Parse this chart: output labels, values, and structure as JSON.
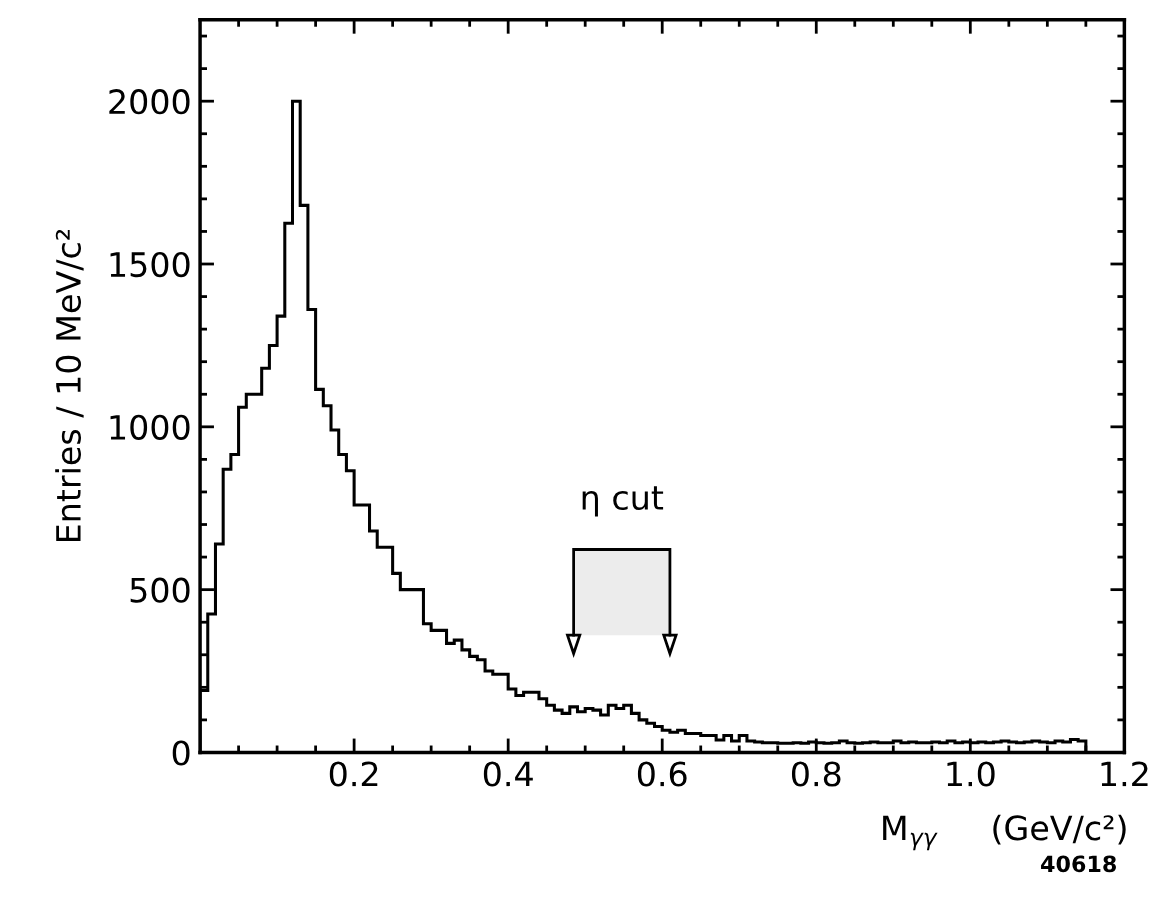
{
  "chart_data": {
    "type": "histogram",
    "xlabel": "M$_{γγ}$     (GeV/c²)",
    "ylabel": "Entries / 10 MeV/c²",
    "annotations": [
      "40618"
    ],
    "bins": [
      0,
      0.01,
      0.02,
      0.03,
      0.04,
      0.05,
      0.06,
      0.07,
      0.08,
      0.09,
      0.1,
      0.11,
      0.12,
      0.13,
      0.14,
      0.15,
      0.16,
      0.17,
      0.18,
      0.19,
      0.2,
      0.21,
      0.22,
      0.23,
      0.24,
      0.25,
      0.26,
      0.27,
      0.28,
      0.29,
      0.3,
      0.31,
      0.32,
      0.33,
      0.34,
      0.35,
      0.36,
      0.37,
      0.38,
      0.39,
      0.4,
      0.41,
      0.42,
      0.43,
      0.44,
      0.45,
      0.46,
      0.47,
      0.48,
      0.49,
      0.5,
      0.51,
      0.52,
      0.53,
      0.54,
      0.55,
      0.56,
      0.57,
      0.58,
      0.59,
      0.6,
      0.61,
      0.62,
      0.63,
      0.64,
      0.65,
      0.66,
      0.67,
      0.68,
      0.69,
      0.7,
      0.71,
      0.72,
      0.73,
      0.74,
      0.75,
      0.76,
      0.77,
      0.78,
      0.79,
      0.8,
      0.81,
      0.82,
      0.83,
      0.84,
      0.85,
      0.86,
      0.87,
      0.88,
      0.89,
      0.9,
      0.91,
      0.92,
      0.93,
      0.94,
      0.95,
      0.96,
      0.97,
      0.98,
      0.99,
      1.0,
      1.01,
      1.02,
      1.03,
      1.04,
      1.05,
      1.06,
      1.07,
      1.08,
      1.09,
      1.1,
      1.11,
      1.12,
      1.13,
      1.14,
      1.15,
      1.16,
      1.17,
      1.18,
      1.19,
      1.2
    ],
    "values": [
      190,
      425,
      640,
      870,
      915,
      1060,
      1100,
      1100,
      1180,
      1250,
      1340,
      1625,
      2000,
      1680,
      1360,
      1115,
      1065,
      990,
      915,
      865,
      760,
      760,
      680,
      630,
      630,
      550,
      500,
      500,
      500,
      395,
      375,
      375,
      335,
      345,
      315,
      295,
      285,
      250,
      240,
      240,
      195,
      175,
      185,
      185,
      165,
      145,
      130,
      120,
      140,
      125,
      135,
      130,
      115,
      145,
      135,
      145,
      120,
      100,
      90,
      80,
      68,
      62,
      68,
      58,
      58,
      52,
      52,
      38,
      52,
      35,
      52,
      35,
      32,
      30,
      30,
      28,
      28,
      30,
      28,
      32,
      30,
      28,
      30,
      35,
      30,
      28,
      30,
      32,
      30,
      30,
      35,
      30,
      32,
      30,
      30,
      32,
      30,
      35,
      30,
      32,
      30,
      32,
      30,
      32,
      35,
      32,
      30,
      32,
      35,
      32,
      30,
      35,
      32,
      40,
      35,
      0,
      0,
      0,
      0,
      0
    ],
    "color": "#000000",
    "bands": [
      {
        "axis": "x",
        "from": 0.485,
        "to": 0.61,
        "label": "η cut",
        "color": "#ececec"
      }
    ],
    "xlim": [
      0,
      1.2
    ],
    "ylim": [
      0,
      2250
    ],
    "xticks": [
      {
        "value": 0.05,
        "label": null
      },
      {
        "value": 0.1,
        "label": null
      },
      {
        "value": 0.15,
        "label": null
      },
      0.2,
      {
        "value": 0.25,
        "label": null
      },
      {
        "value": 0.3,
        "label": null
      },
      {
        "value": 0.35,
        "label": null
      },
      0.4,
      {
        "value": 0.45,
        "label": null
      },
      {
        "value": 0.5,
        "label": null
      },
      {
        "value": 0.55,
        "label": null
      },
      0.6,
      {
        "value": 0.65,
        "label": null
      },
      {
        "value": 0.7,
        "label": null
      },
      {
        "value": 0.75,
        "label": null
      },
      0.8,
      {
        "value": 0.85,
        "label": null
      },
      {
        "value": 0.9,
        "label": null
      },
      {
        "value": 0.95,
        "label": null
      },
      {
        "value": 1.0,
        "label": "1.0"
      },
      {
        "value": 1.05,
        "label": null
      },
      {
        "value": 1.1,
        "label": null
      },
      {
        "value": 1.15,
        "label": null
      },
      1.2
    ],
    "yticks": [
      0,
      {
        "value": 100,
        "label": null
      },
      {
        "value": 200,
        "label": null
      },
      {
        "value": 300,
        "label": null
      },
      {
        "value": 400,
        "label": null
      },
      500,
      {
        "value": 600,
        "label": null
      },
      {
        "value": 700,
        "label": null
      },
      {
        "value": 800,
        "label": null
      },
      {
        "value": 900,
        "label": null
      },
      1000,
      {
        "value": 1100,
        "label": null
      },
      {
        "value": 1200,
        "label": null
      },
      {
        "value": 1300,
        "label": null
      },
      {
        "value": 1400,
        "label": null
      },
      1500,
      {
        "value": 1600,
        "label": null
      },
      {
        "value": 1700,
        "label": null
      },
      {
        "value": 1800,
        "label": null
      },
      {
        "value": 1900,
        "label": null
      },
      2000,
      {
        "value": 2100,
        "label": null
      },
      {
        "value": 2200,
        "label": null
      }
    ],
    "grid": false
  }
}
